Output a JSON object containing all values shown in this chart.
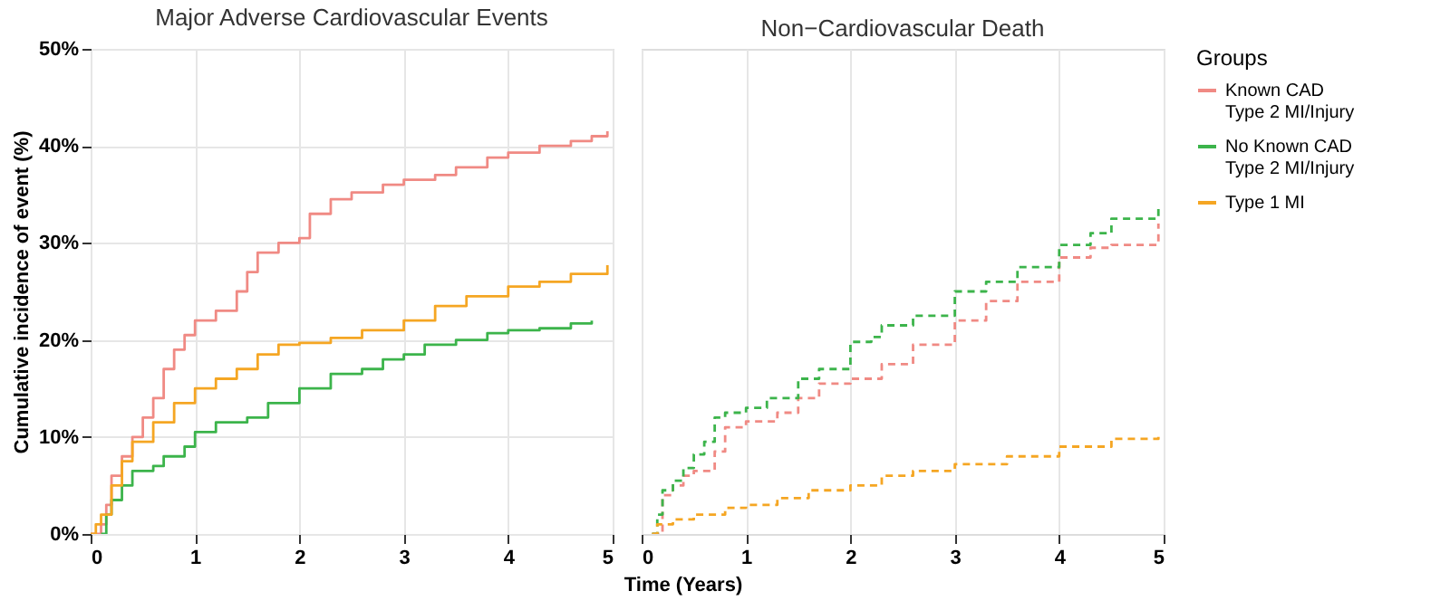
{
  "chart_data": [
    {
      "type": "step",
      "title": "Major Adverse Cardiovascular Events",
      "xlabel": "Time (Years)",
      "ylabel": "Cumulative incidence of event (%)",
      "xlim": [
        0,
        5
      ],
      "xticks": [
        0,
        1,
        2,
        3,
        4,
        5
      ],
      "ylim": [
        0,
        50
      ],
      "yticks": [
        {
          "value": 0,
          "label": "0%"
        },
        {
          "value": 10,
          "label": "10%"
        },
        {
          "value": 20,
          "label": "20%"
        },
        {
          "value": 30,
          "label": "30%"
        },
        {
          "value": 40,
          "label": "40%"
        },
        {
          "value": 50,
          "label": "50%"
        }
      ],
      "grid": true,
      "line_style": "solid",
      "series": [
        {
          "color": "#f08a84",
          "x": [
            0,
            0.1,
            0.15,
            0.2,
            0.3,
            0.4,
            0.5,
            0.6,
            0.7,
            0.8,
            0.9,
            1,
            1.2,
            1.4,
            1.5,
            1.6,
            1.8,
            2,
            2.1,
            2.3,
            2.5,
            2.8,
            3,
            3.3,
            3.5,
            3.8,
            4,
            4.3,
            4.6,
            4.8,
            4.95
          ],
          "values": [
            0,
            1,
            3,
            6,
            8,
            10,
            12,
            14,
            17,
            19,
            20.5,
            22,
            23,
            25,
            27,
            29,
            30,
            30.5,
            33,
            34.5,
            35.2,
            36,
            36.5,
            37,
            37.8,
            38.8,
            39.3,
            40,
            40.5,
            41,
            41.5
          ]
        },
        {
          "color": "#3cb44b",
          "x": [
            0.1,
            0.15,
            0.2,
            0.3,
            0.4,
            0.6,
            0.7,
            0.9,
            1,
            1.2,
            1.5,
            1.7,
            2,
            2.3,
            2.6,
            2.8,
            3,
            3.2,
            3.5,
            3.8,
            4,
            4.3,
            4.6,
            4.8
          ],
          "values": [
            0,
            2,
            3.5,
            5,
            6.5,
            7,
            8,
            9,
            10.5,
            11.5,
            12,
            13.5,
            15,
            16.5,
            17,
            18,
            18.5,
            19.5,
            20,
            20.7,
            21,
            21.2,
            21.7,
            22
          ]
        },
        {
          "color": "#f5a623",
          "x": [
            0,
            0.05,
            0.1,
            0.2,
            0.3,
            0.4,
            0.6,
            0.8,
            1,
            1.2,
            1.4,
            1.6,
            1.8,
            2,
            2.3,
            2.6,
            3,
            3.3,
            3.6,
            4,
            4.3,
            4.6,
            4.95
          ],
          "values": [
            0,
            1,
            2,
            5,
            7.5,
            9.5,
            11.5,
            13.5,
            15,
            16,
            17,
            18.5,
            19.5,
            19.7,
            20.2,
            21,
            22,
            23.5,
            24.5,
            25.5,
            26,
            26.8,
            27.7
          ]
        }
      ]
    },
    {
      "type": "step",
      "title": "Non−Cardiovascular Death",
      "legend_title": "Groups",
      "legend": "right",
      "tick_labels": "x",
      "xlim": [
        0,
        5
      ],
      "xticks": [
        0,
        1,
        2,
        3,
        4,
        5
      ],
      "ylim": [
        0,
        50
      ],
      "grid": true,
      "line_style": "dashed",
      "series": [
        {
          "name": "Known CAD\nType 2 MI/Injury",
          "color": "#f08a84",
          "x": [
            0.1,
            0.2,
            0.3,
            0.4,
            0.5,
            0.7,
            0.8,
            1,
            1.3,
            1.5,
            1.7,
            2,
            2.3,
            2.6,
            3,
            3.3,
            3.6,
            4,
            4.3,
            4.5,
            4.95
          ],
          "values": [
            0,
            4,
            5,
            6,
            6.5,
            8.5,
            11,
            11.6,
            12.5,
            14,
            15.5,
            16,
            17.5,
            19.5,
            22,
            24,
            26,
            28.5,
            29.5,
            29.8,
            32
          ]
        },
        {
          "name": "No Known CAD\nType 2 MI/Injury",
          "color": "#3cb44b",
          "x": [
            0.1,
            0.15,
            0.2,
            0.3,
            0.4,
            0.5,
            0.6,
            0.7,
            0.8,
            1,
            1.2,
            1.5,
            1.7,
            2,
            2.2,
            2.3,
            2.6,
            3,
            3.3,
            3.6,
            4,
            4.3,
            4.5,
            4.95
          ],
          "values": [
            0,
            2,
            4.5,
            5.5,
            6.8,
            8.2,
            9.5,
            12,
            12.5,
            13,
            14,
            16,
            17,
            19.8,
            20.3,
            21.5,
            22.5,
            25,
            26,
            27.5,
            29.8,
            31,
            32.5,
            33.5
          ]
        },
        {
          "name": "Type 1 MI",
          "color": "#f5a623",
          "x": [
            0.1,
            0.15,
            0.3,
            0.5,
            0.8,
            1,
            1.3,
            1.6,
            2,
            2.3,
            2.6,
            3,
            3.5,
            4,
            4.5,
            4.95
          ],
          "values": [
            0,
            1,
            1.5,
            2,
            2.7,
            3,
            3.7,
            4.5,
            5,
            6,
            6.5,
            7.2,
            8,
            9,
            9.8,
            10.5
          ]
        }
      ]
    }
  ]
}
